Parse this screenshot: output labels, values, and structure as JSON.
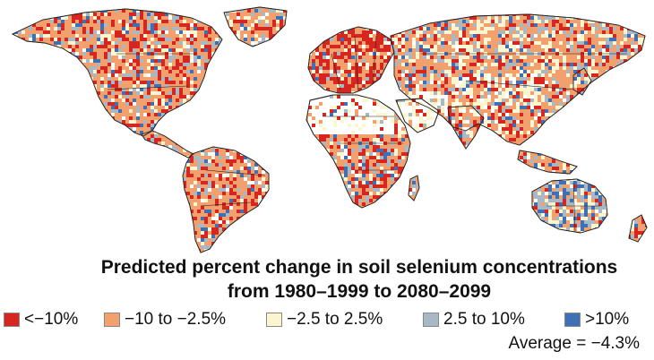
{
  "title": {
    "line1": "Predicted percent change in soil selenium concentrations",
    "line2": "from 1980–1999 to 2080–2099"
  },
  "legend": {
    "items": [
      {
        "label": "<−10%",
        "color": "#d7251f"
      },
      {
        "label": "−10 to −2.5%",
        "color": "#f2a06e"
      },
      {
        "label": "−2.5 to 2.5%",
        "color": "#fbf6cf"
      },
      {
        "label": "2.5 to 10%",
        "color": "#a9b8c5"
      },
      {
        "label": ">10%",
        "color": "#3f6fb5"
      }
    ]
  },
  "average": "Average = −4.3%",
  "map": {
    "border_color": "#222222",
    "nodata_color": "#ffffff"
  }
}
